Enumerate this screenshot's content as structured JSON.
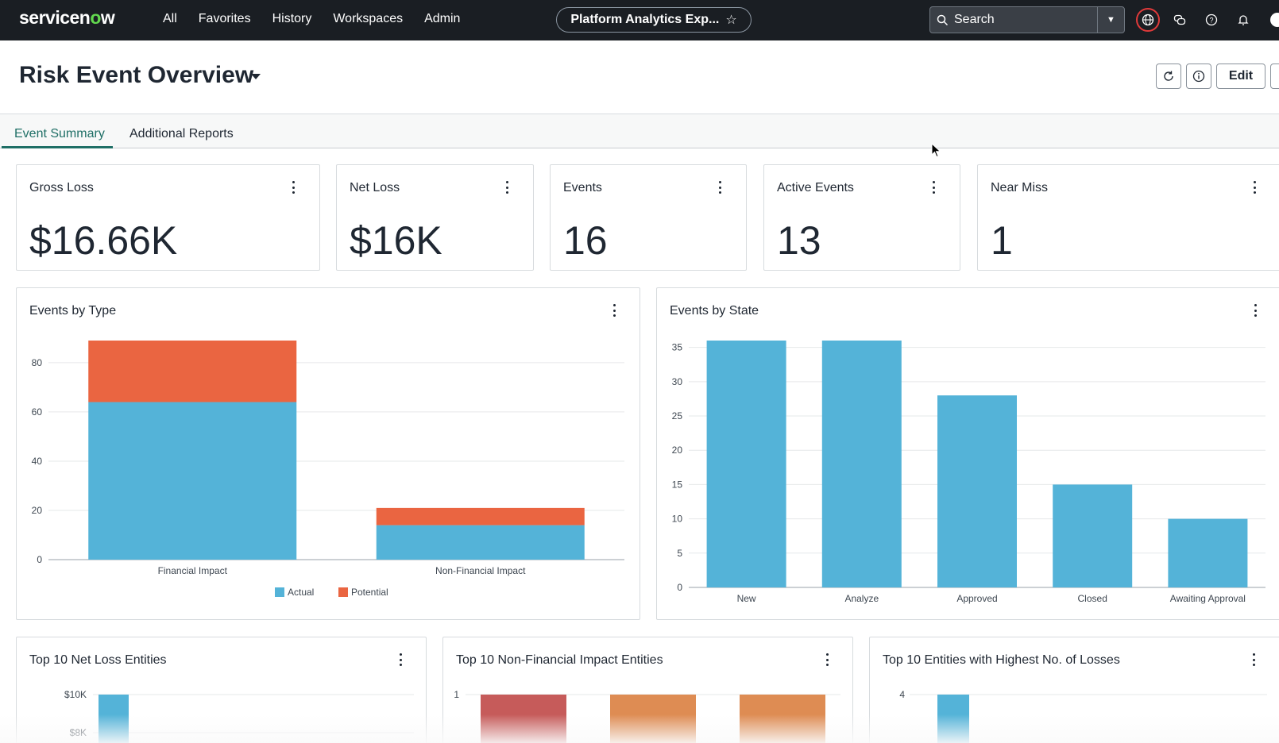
{
  "nav": {
    "brand_a": "servicen",
    "brand_o": "o",
    "brand_b": "w",
    "links": [
      "All",
      "Favorites",
      "History",
      "Workspaces",
      "Admin"
    ],
    "pill_label": "Platform Analytics Exp...",
    "search_placeholder": "Search"
  },
  "header": {
    "title": "Risk Event Overview",
    "edit_label": "Edit"
  },
  "tabs": [
    {
      "label": "Event Summary",
      "active": true
    },
    {
      "label": "Additional Reports",
      "active": false
    }
  ],
  "kpis": [
    {
      "title": "Gross Loss",
      "value": "$16.66K"
    },
    {
      "title": "Net Loss",
      "value": "$16K"
    },
    {
      "title": "Events",
      "value": "16"
    },
    {
      "title": "Active Events",
      "value": "13"
    },
    {
      "title": "Near Miss",
      "value": "1"
    }
  ],
  "colors": {
    "actual": "#54b3d8",
    "potential": "#ea6541",
    "state_bar": "#54b3d8",
    "nonfin_red": "#c65b5a",
    "nonfin_orange": "#de8c53"
  },
  "chart_data": [
    {
      "title": "Events by Type",
      "type": "bar",
      "stacked": true,
      "categories": [
        "Financial Impact",
        "Non-Financial Impact"
      ],
      "series": [
        {
          "name": "Actual",
          "values": [
            64,
            14
          ]
        },
        {
          "name": "Potential",
          "values": [
            25,
            7
          ]
        }
      ],
      "yticks": [
        0,
        20,
        40,
        60,
        80
      ],
      "ylim": [
        0,
        89
      ],
      "legend": "bottom"
    },
    {
      "title": "Events by State",
      "type": "bar",
      "categories": [
        "New",
        "Analyze",
        "Approved",
        "Closed",
        "Awaiting Approval"
      ],
      "values": [
        36,
        36,
        28,
        15,
        10
      ],
      "yticks": [
        0,
        5,
        10,
        15,
        20,
        25,
        30,
        35
      ],
      "ylim": [
        0,
        36
      ]
    },
    {
      "title": "Top 10 Net Loss Entities",
      "type": "bar",
      "yticks": [
        "$8K",
        "$10K"
      ],
      "values": [
        10000
      ]
    },
    {
      "title": "Top 10 Non-Financial Impact Entities",
      "type": "bar",
      "yticks": [
        1
      ],
      "values": [
        1,
        1,
        1
      ]
    },
    {
      "title": "Top 10 Entities with Highest No. of Losses",
      "type": "bar",
      "yticks": [
        4
      ],
      "values": [
        4
      ]
    }
  ]
}
